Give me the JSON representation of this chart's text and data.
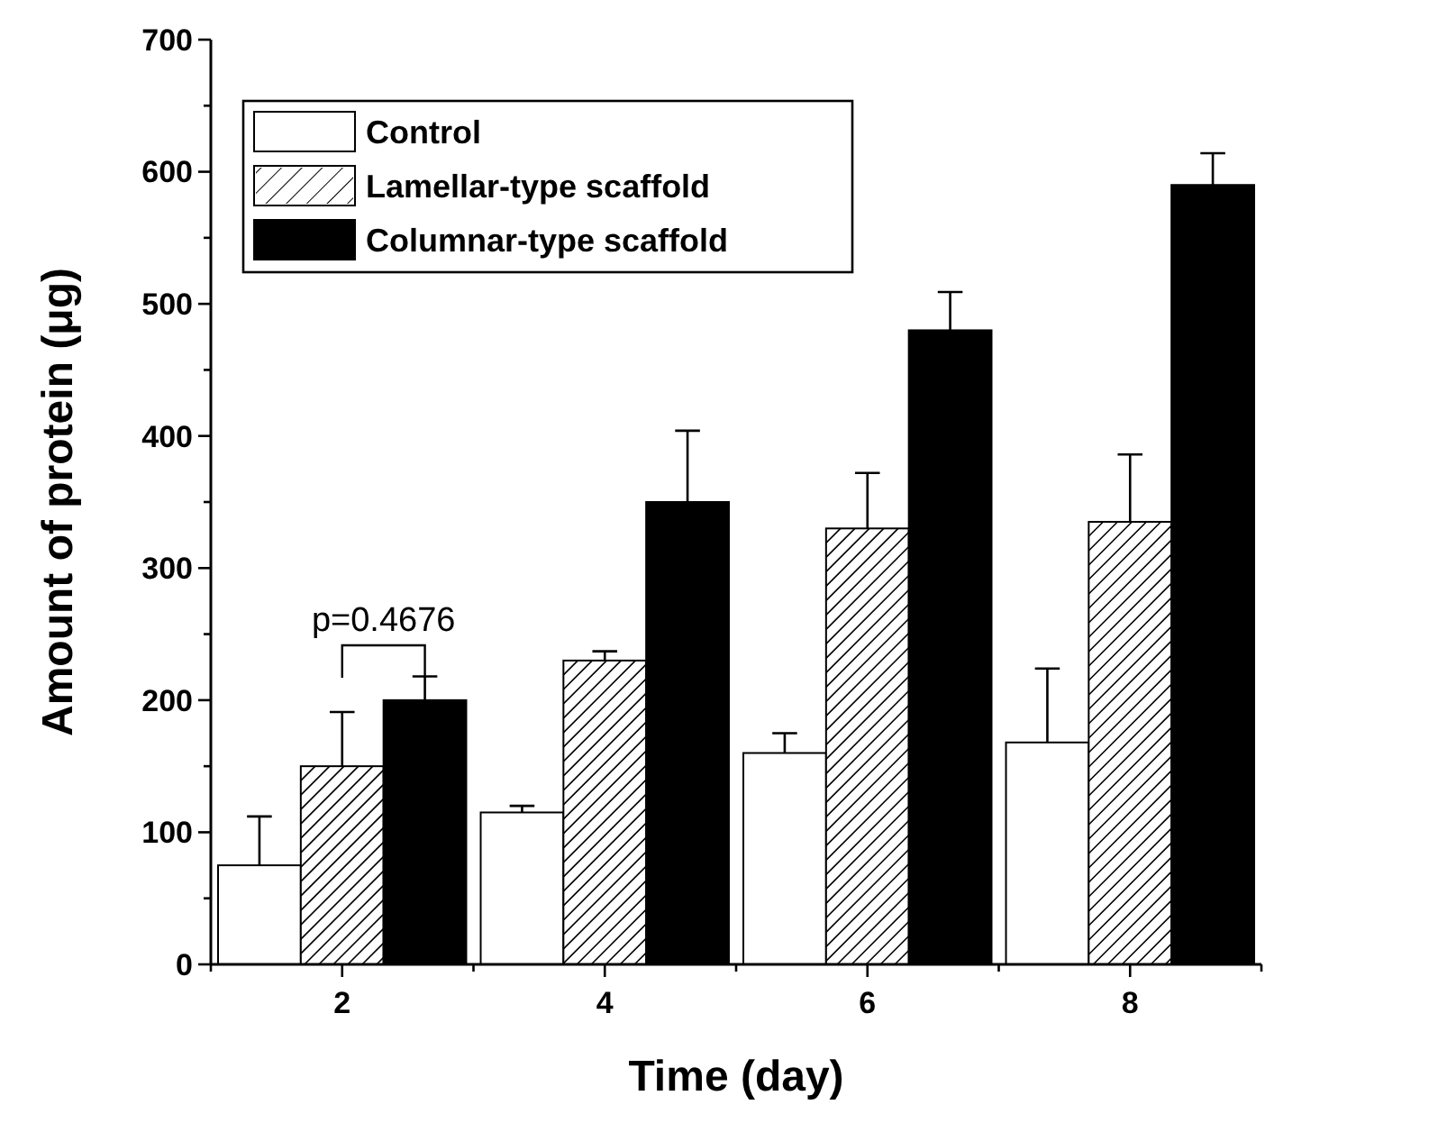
{
  "chart_data": {
    "type": "bar",
    "xlabel": "Time (day)",
    "ylabel": "Amount of protein (μg)",
    "categories": [
      "2",
      "4",
      "6",
      "8"
    ],
    "series": [
      {
        "name": "Control",
        "color": "#ffffff",
        "values": [
          75,
          115,
          160,
          168
        ],
        "errors": [
          [
            75,
            112
          ],
          [
            115,
            120
          ],
          [
            160,
            175
          ],
          [
            168,
            224
          ]
        ]
      },
      {
        "name": "Lamellar-type scaffold",
        "color": "#ffffff",
        "values": [
          150,
          230,
          330,
          335
        ],
        "errors": [
          [
            150,
            191
          ],
          [
            230,
            237
          ],
          [
            330,
            372
          ],
          [
            335,
            386
          ]
        ]
      },
      {
        "name": "Columnar-type scaffold",
        "color": "#000000",
        "values": [
          200,
          350,
          480,
          590
        ],
        "errors": [
          [
            200,
            218
          ],
          [
            350,
            404
          ],
          [
            480,
            509
          ],
          [
            590,
            614
          ]
        ]
      }
    ],
    "ylim": [
      0,
      700
    ],
    "yticks": [
      0,
      {
        "value": 50,
        "label": null
      },
      100,
      {
        "value": 150,
        "label": null
      },
      200,
      {
        "value": 250,
        "label": null
      },
      300,
      {
        "value": 350,
        "label": null
      },
      400,
      {
        "value": 450,
        "label": null
      },
      500,
      {
        "value": 550,
        "label": null
      },
      600,
      {
        "value": 650,
        "label": null
      },
      700
    ],
    "annotations": [
      "p=0.4676"
    ],
    "legend": "top left",
    "grid": false
  }
}
